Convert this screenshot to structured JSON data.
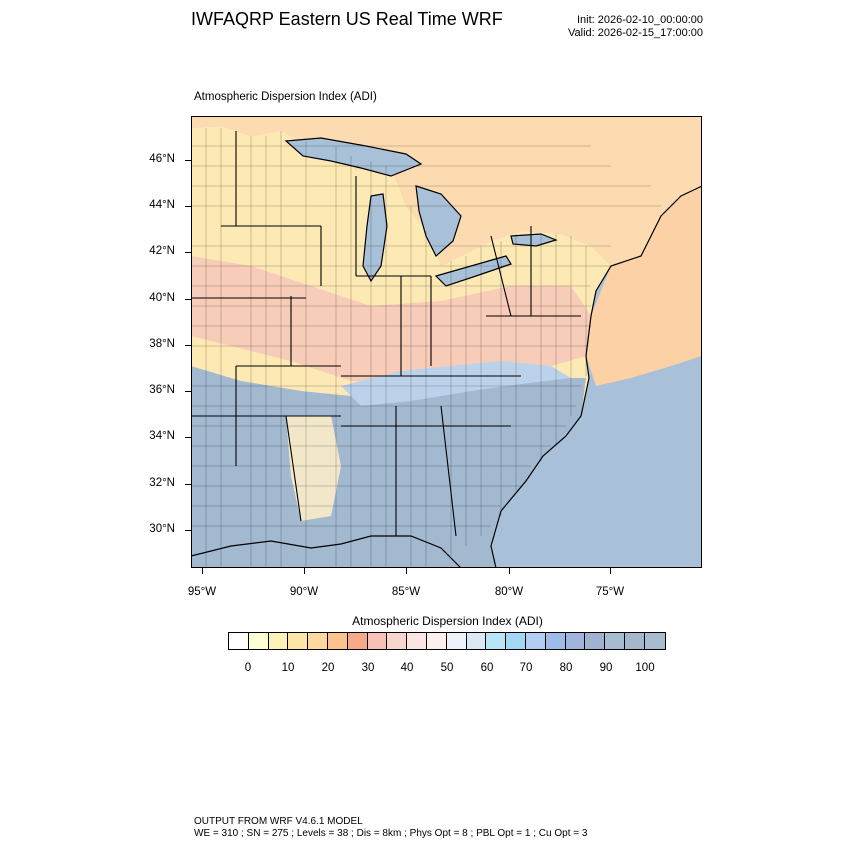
{
  "title": "IWFAQRP Eastern US Real Time WRF",
  "init_label": "Init: 2026-02-10_00:00:00",
  "valid_label": "Valid: 2026-02-15_17:00:00",
  "variable_label": "Atmospheric Dispersion Index   (ADI)",
  "map": {
    "lat_labels": [
      "46°N",
      "44°N",
      "42°N",
      "40°N",
      "38°N",
      "36°N",
      "34°N",
      "32°N",
      "30°N"
    ],
    "lon_labels": [
      "95°W",
      "90°W",
      "85°W",
      "80°W",
      "75°W"
    ]
  },
  "colorbar": {
    "title": "Atmospheric Dispersion Index  (ADI)",
    "colors": [
      "#ffffff",
      "#ffffd4",
      "#fff2b8",
      "#fee6a8",
      "#fdd9a0",
      "#fcc38e",
      "#f8a98a",
      "#f6c2b8",
      "#f9d6cd",
      "#fbe6e1",
      "#fcefee",
      "#eef3fb",
      "#dbe8f6",
      "#b8e6f8",
      "#a2d8f3",
      "#b4cdf2",
      "#9fbbe8",
      "#a1b5dc",
      "#9fb2cf",
      "#a8bdd2",
      "#a3b8cd",
      "#a8bcd1"
    ],
    "tick_labels": [
      "0",
      "10",
      "20",
      "30",
      "40",
      "50",
      "60",
      "70",
      "80",
      "90",
      "100"
    ]
  },
  "footer": {
    "line1": "OUTPUT FROM WRF V4.6.1 MODEL",
    "line2": "WE = 310 ; SN = 275 ; Levels = 38 ; Dis = 8km ; Phys Opt = 8 ; PBL Opt = 1 ; Cu Opt = 3"
  },
  "colors": {
    "ocean": "#a9c1d8",
    "lake": "#a9c1d8",
    "land_low_adi": "#fde9b4",
    "land_mid_adi": "#f7c9b4",
    "land_high_adi": "#a3b9d0"
  }
}
